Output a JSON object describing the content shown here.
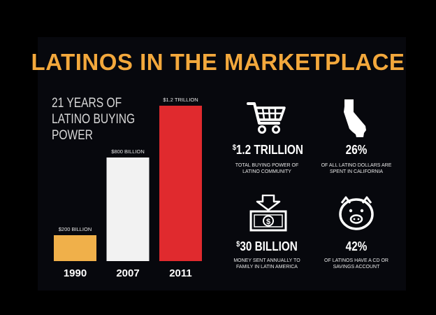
{
  "title": "LATINOS IN THE MARKETPLACE",
  "subtitle": "21 YEARS OF LATINO BUYING POWER",
  "colors": {
    "background": "#07080d",
    "title": "#f3a83c",
    "bar_1990": "#f0b04a",
    "bar_2007": "#f2f2f2",
    "bar_2011": "#e02a2e"
  },
  "chart_data": {
    "type": "bar",
    "categories": [
      "1990",
      "2007",
      "2011"
    ],
    "values": [
      200,
      800,
      1200
    ],
    "value_labels": [
      "$200 BILLION",
      "$800 BILLION",
      "$1.2 TRILLION"
    ],
    "title": "21 YEARS OF LATINO BUYING POWER",
    "xlabel": "",
    "ylabel": "",
    "ylim": [
      0,
      1200
    ],
    "grid": false
  },
  "stats": [
    {
      "icon": "shopping-cart-icon",
      "prefix": "$",
      "value": "1.2 TRILLION",
      "description": "TOTAL BUYING POWER OF LATINO COMMUNITY"
    },
    {
      "icon": "california-map-icon",
      "prefix": "",
      "value": "26%",
      "description": "OF ALL LATINO DOLLARS ARE SPENT IN CALIFORNIA"
    },
    {
      "icon": "money-transfer-icon",
      "prefix": "$",
      "value": "30 BILLION",
      "description": "MONEY SENT ANNUALLY TO FAMILY IN LATIN AMERICA"
    },
    {
      "icon": "piggy-bank-icon",
      "prefix": "",
      "value": "42%",
      "description": "OF LATINOS HAVE A CD OR SAVINGS ACCOUNT"
    }
  ]
}
